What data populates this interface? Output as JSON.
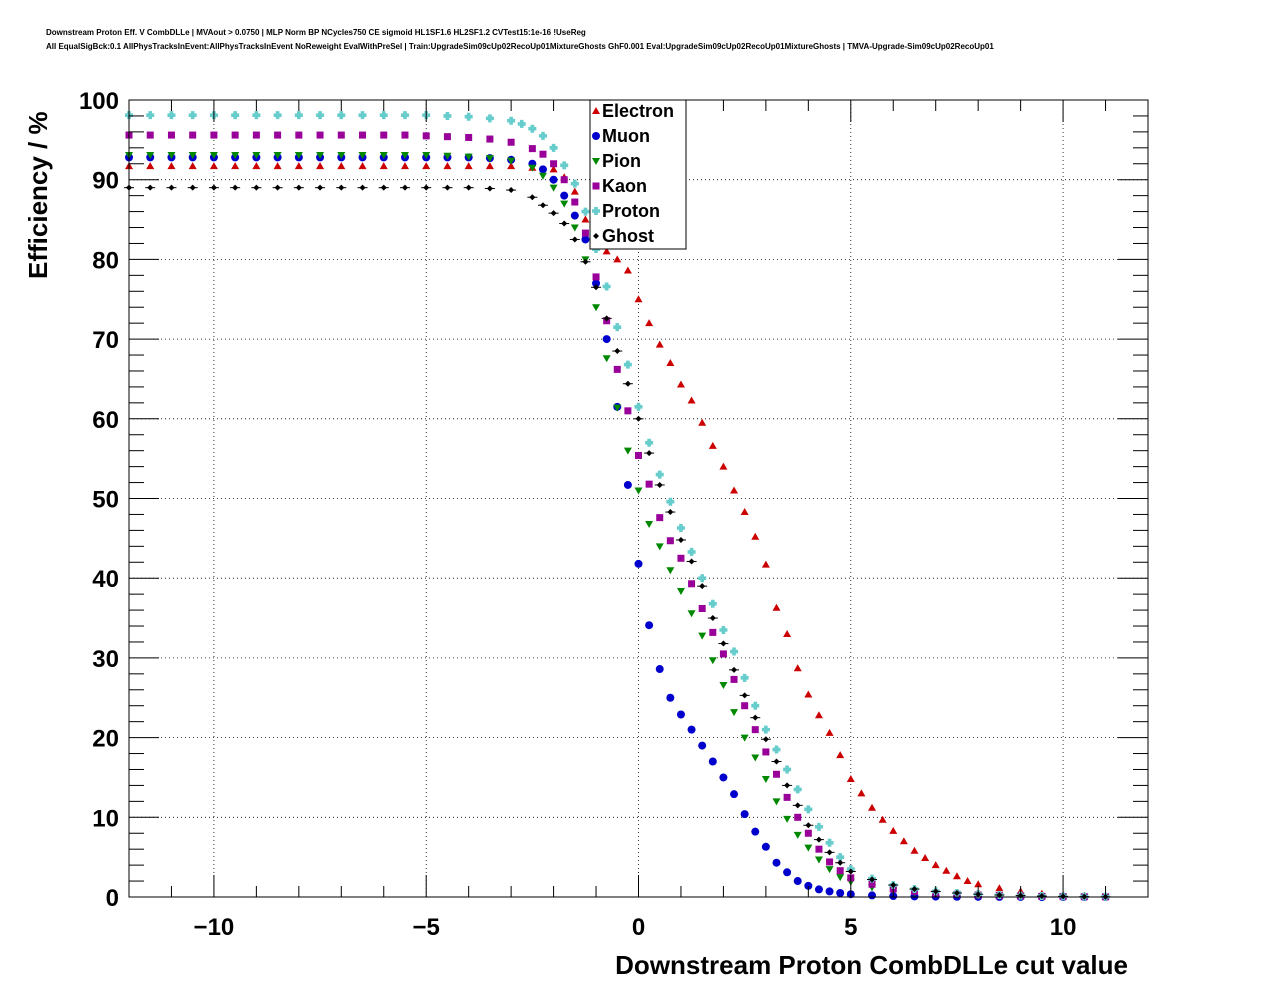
{
  "header": {
    "line1": "Downstream Proton Eff. V CombDLLe | MVAout > 0.0750 | MLP Norm BP NCycles750 CE sigmoid HL1SF1.6 HL2SF1.2 CVTest15:1e-16 !UseReg",
    "line2": "All EqualSigBck:0.1 AllPhysTracksInEvent:AllPhysTracksInEvent NoReweight EvalWithPreSel | Train:UpgradeSim09cUp02RecoUp01MixtureGhosts GhF0.001 Eval:UpgradeSim09cUp02RecoUp01MixtureGhosts | TMVA-Upgrade-Sim09cUp02RecoUp01"
  },
  "chart_data": {
    "type": "scatter",
    "title": "",
    "xlabel": "Downstream Proton CombDLLe cut value",
    "ylabel": "Efficiency / %",
    "xlim": [
      -12,
      12
    ],
    "ylim": [
      0,
      100
    ],
    "xticks": [
      -10,
      -5,
      0,
      5,
      10
    ],
    "xtick_labels": [
      "−10",
      "−5",
      "0",
      "5",
      "10"
    ],
    "yticks": [
      0,
      10,
      20,
      30,
      40,
      50,
      60,
      70,
      80,
      90,
      100
    ],
    "ytick_labels": [
      "0",
      "10",
      "20",
      "30",
      "40",
      "50",
      "60",
      "70",
      "80",
      "90",
      "100"
    ],
    "grid": true,
    "legend_position": "top-center",
    "series": [
      {
        "name": "Electron",
        "color": "#cc0000",
        "marker": "triangle-up",
        "x": [
          -12,
          -11.5,
          -11,
          -10.5,
          -10,
          -9.5,
          -9,
          -8.5,
          -8,
          -7.5,
          -7,
          -6.5,
          -6,
          -5.5,
          -5,
          -4.5,
          -4,
          -3.5,
          -3,
          -2.5,
          -2,
          -1.75,
          -1.5,
          -1.25,
          -1,
          -0.75,
          -0.5,
          -0.25,
          0,
          0.25,
          0.5,
          0.75,
          1,
          1.25,
          1.5,
          1.75,
          2,
          2.25,
          2.5,
          2.75,
          3,
          3.25,
          3.5,
          3.75,
          4,
          4.25,
          4.5,
          4.75,
          5,
          5.25,
          5.5,
          5.75,
          6,
          6.25,
          6.5,
          6.75,
          7,
          7.25,
          7.5,
          7.75,
          8,
          8.5,
          9,
          9.5,
          10,
          10.5,
          11
        ],
        "y": [
          91.7,
          91.7,
          91.7,
          91.7,
          91.7,
          91.7,
          91.7,
          91.7,
          91.7,
          91.7,
          91.7,
          91.7,
          91.7,
          91.7,
          91.7,
          91.7,
          91.7,
          91.7,
          91.7,
          91.5,
          91.3,
          90.3,
          88.5,
          85.0,
          82.8,
          81.0,
          80.0,
          78.6,
          75.0,
          72.0,
          69.3,
          67.0,
          64.3,
          62.3,
          59.5,
          56.6,
          54.0,
          51.0,
          48.3,
          45.2,
          41.7,
          36.3,
          33.0,
          28.7,
          25.4,
          22.8,
          20.6,
          17.8,
          14.8,
          13.0,
          11.2,
          9.7,
          8.3,
          7.0,
          5.8,
          4.9,
          4.0,
          3.3,
          2.6,
          2.0,
          1.6,
          1.1,
          0.7,
          0.4,
          0.25,
          0.15,
          0.1
        ]
      },
      {
        "name": "Muon",
        "color": "#0000cc",
        "marker": "circle",
        "x": [
          -12,
          -11.5,
          -11,
          -10.5,
          -10,
          -9.5,
          -9,
          -8.5,
          -8,
          -7.5,
          -7,
          -6.5,
          -6,
          -5.5,
          -5,
          -4.5,
          -4,
          -3.5,
          -3,
          -2.5,
          -2.25,
          -2,
          -1.75,
          -1.5,
          -1.25,
          -1,
          -0.75,
          -0.5,
          -0.25,
          0,
          0.25,
          0.5,
          0.75,
          1,
          1.25,
          1.5,
          1.75,
          2,
          2.25,
          2.5,
          2.75,
          3,
          3.25,
          3.5,
          3.75,
          4,
          4.25,
          4.5,
          4.75,
          5,
          5.5,
          6,
          6.5,
          7,
          7.5,
          8,
          8.5,
          9,
          9.5,
          10,
          10.5,
          11
        ],
        "y": [
          92.8,
          92.8,
          92.8,
          92.8,
          92.8,
          92.8,
          92.8,
          92.8,
          92.8,
          92.8,
          92.8,
          92.8,
          92.8,
          92.8,
          92.8,
          92.8,
          92.8,
          92.7,
          92.5,
          92.0,
          91.3,
          90.0,
          88.0,
          85.5,
          82.5,
          77.0,
          70.0,
          61.5,
          51.7,
          41.8,
          34.1,
          28.6,
          25.0,
          22.9,
          21.0,
          19.0,
          17.0,
          15.0,
          12.9,
          10.4,
          8.2,
          6.3,
          4.3,
          3.1,
          2.0,
          1.4,
          0.95,
          0.7,
          0.5,
          0.35,
          0.2,
          0.12,
          0.08,
          0.05,
          0.03,
          0.02,
          0.01,
          0.01,
          0,
          0,
          0,
          0
        ]
      },
      {
        "name": "Pion",
        "color": "#008800",
        "marker": "triangle-down",
        "x": [
          -12,
          -11.5,
          -11,
          -10.5,
          -10,
          -9.5,
          -9,
          -8.5,
          -8,
          -7.5,
          -7,
          -6.5,
          -6,
          -5.5,
          -5,
          -4.5,
          -4,
          -3.5,
          -3,
          -2.5,
          -2.25,
          -2,
          -1.75,
          -1.5,
          -1.25,
          -1,
          -0.75,
          -0.5,
          -0.25,
          0,
          0.25,
          0.5,
          0.75,
          1,
          1.25,
          1.5,
          1.75,
          2,
          2.25,
          2.5,
          2.75,
          3,
          3.25,
          3.5,
          3.75,
          4,
          4.25,
          4.5,
          4.75,
          5,
          5.5,
          6,
          6.5,
          7,
          7.5,
          8,
          8.5,
          9,
          9.5,
          10,
          10.5,
          11
        ],
        "y": [
          93.1,
          93.1,
          93.1,
          93.1,
          93.1,
          93.1,
          93.1,
          93.1,
          93.1,
          93.1,
          93.1,
          93.1,
          93.1,
          93.1,
          93.1,
          93.0,
          92.9,
          92.7,
          92.4,
          91.5,
          90.5,
          89.0,
          87.0,
          84.0,
          80.0,
          74.0,
          67.6,
          61.4,
          56.0,
          51.0,
          46.8,
          44.0,
          41.0,
          38.4,
          35.6,
          32.8,
          29.7,
          26.6,
          23.2,
          20.0,
          17.5,
          14.8,
          12.0,
          9.8,
          7.8,
          6.2,
          4.7,
          3.5,
          2.5,
          1.9,
          1.2,
          0.8,
          0.55,
          0.4,
          0.3,
          0.2,
          0.15,
          0.1,
          0.08,
          0.05,
          0.03,
          0.02
        ]
      },
      {
        "name": "Kaon",
        "color": "#990099",
        "marker": "square",
        "x": [
          -12,
          -11.5,
          -11,
          -10.5,
          -10,
          -9.5,
          -9,
          -8.5,
          -8,
          -7.5,
          -7,
          -6.5,
          -6,
          -5.5,
          -5,
          -4.5,
          -4,
          -3.5,
          -3,
          -2.5,
          -2.25,
          -2,
          -1.75,
          -1.5,
          -1.25,
          -1,
          -0.75,
          -0.5,
          -0.25,
          0,
          0.25,
          0.5,
          0.75,
          1,
          1.25,
          1.5,
          1.75,
          2,
          2.25,
          2.5,
          2.75,
          3,
          3.25,
          3.5,
          3.75,
          4,
          4.25,
          4.5,
          4.75,
          5,
          5.5,
          6,
          6.5,
          7,
          7.5,
          8,
          8.5,
          9,
          9.5,
          10,
          10.5,
          11
        ],
        "y": [
          95.6,
          95.6,
          95.6,
          95.6,
          95.6,
          95.6,
          95.6,
          95.6,
          95.6,
          95.6,
          95.6,
          95.6,
          95.6,
          95.6,
          95.5,
          95.4,
          95.3,
          95.1,
          94.7,
          93.9,
          93.2,
          92.0,
          90.0,
          87.2,
          83.3,
          77.8,
          72.3,
          66.2,
          61.0,
          55.4,
          51.8,
          47.6,
          44.7,
          42.5,
          39.3,
          36.2,
          33.2,
          30.5,
          27.3,
          24.0,
          21.0,
          18.2,
          15.4,
          12.5,
          10.0,
          8.0,
          6.0,
          4.4,
          3.3,
          2.4,
          1.6,
          1.0,
          0.7,
          0.5,
          0.35,
          0.25,
          0.18,
          0.12,
          0.08,
          0.05,
          0.03,
          0.02
        ]
      },
      {
        "name": "Proton",
        "color": "#66cccc",
        "marker": "cross",
        "x": [
          -12,
          -11.5,
          -11,
          -10.5,
          -10,
          -9.5,
          -9,
          -8.5,
          -8,
          -7.5,
          -7,
          -6.5,
          -6,
          -5.5,
          -5,
          -4.5,
          -4,
          -3.5,
          -3,
          -2.75,
          -2.5,
          -2.25,
          -2,
          -1.75,
          -1.5,
          -1.25,
          -1,
          -0.75,
          -0.5,
          -0.25,
          0,
          0.25,
          0.5,
          0.75,
          1,
          1.25,
          1.5,
          1.75,
          2,
          2.25,
          2.5,
          2.75,
          3,
          3.25,
          3.5,
          3.75,
          4,
          4.25,
          4.5,
          4.75,
          5,
          5.5,
          6,
          6.5,
          7,
          7.5,
          8,
          8.5,
          9,
          9.5,
          10,
          10.5,
          11
        ],
        "y": [
          98.1,
          98.1,
          98.1,
          98.1,
          98.1,
          98.1,
          98.1,
          98.1,
          98.1,
          98.1,
          98.1,
          98.1,
          98.1,
          98.1,
          98.1,
          98.0,
          97.9,
          97.7,
          97.4,
          97.0,
          96.4,
          95.5,
          94.0,
          91.8,
          89.5,
          86.0,
          81.3,
          76.6,
          71.5,
          66.8,
          61.5,
          57.0,
          53.0,
          49.6,
          46.3,
          43.3,
          40.0,
          36.8,
          33.5,
          30.8,
          27.5,
          24.0,
          21.0,
          18.5,
          16.0,
          13.5,
          11.0,
          8.8,
          6.8,
          5.0,
          3.5,
          2.3,
          1.5,
          1.0,
          0.7,
          0.5,
          0.35,
          0.25,
          0.18,
          0.12,
          0.08,
          0.05,
          0.03
        ]
      },
      {
        "name": "Ghost",
        "color": "#000000",
        "marker": "diamond",
        "x": [
          -12,
          -11.5,
          -11,
          -10.5,
          -10,
          -9.5,
          -9,
          -8.5,
          -8,
          -7.5,
          -7,
          -6.5,
          -6,
          -5.5,
          -5,
          -4.5,
          -4,
          -3.5,
          -3,
          -2.5,
          -2.25,
          -2,
          -1.75,
          -1.5,
          -1.25,
          -1,
          -0.75,
          -0.5,
          -0.25,
          0,
          0.25,
          0.5,
          0.75,
          1,
          1.25,
          1.5,
          1.75,
          2,
          2.25,
          2.5,
          2.75,
          3,
          3.25,
          3.5,
          3.75,
          4,
          4.25,
          4.5,
          4.75,
          5,
          5.5,
          6,
          6.5,
          7,
          7.5,
          8,
          8.5,
          9,
          9.5,
          10,
          10.5,
          11
        ],
        "y": [
          89.0,
          89.0,
          89.0,
          89.0,
          89.0,
          89.0,
          89.0,
          89.0,
          89.0,
          89.0,
          89.0,
          89.0,
          89.0,
          89.0,
          89.0,
          89.0,
          89.0,
          88.9,
          88.7,
          87.8,
          86.8,
          85.8,
          84.5,
          82.5,
          79.7,
          76.5,
          72.6,
          68.5,
          64.4,
          60.0,
          55.7,
          51.7,
          48.3,
          44.8,
          42.1,
          39.0,
          35.0,
          31.8,
          28.5,
          25.3,
          22.5,
          19.8,
          17.0,
          14.0,
          11.5,
          9.0,
          7.2,
          5.6,
          4.3,
          3.2,
          2.2,
          1.5,
          1.0,
          0.7,
          0.5,
          0.35,
          0.25,
          0.18,
          0.12,
          0.08,
          0.05,
          0.03
        ]
      }
    ]
  }
}
